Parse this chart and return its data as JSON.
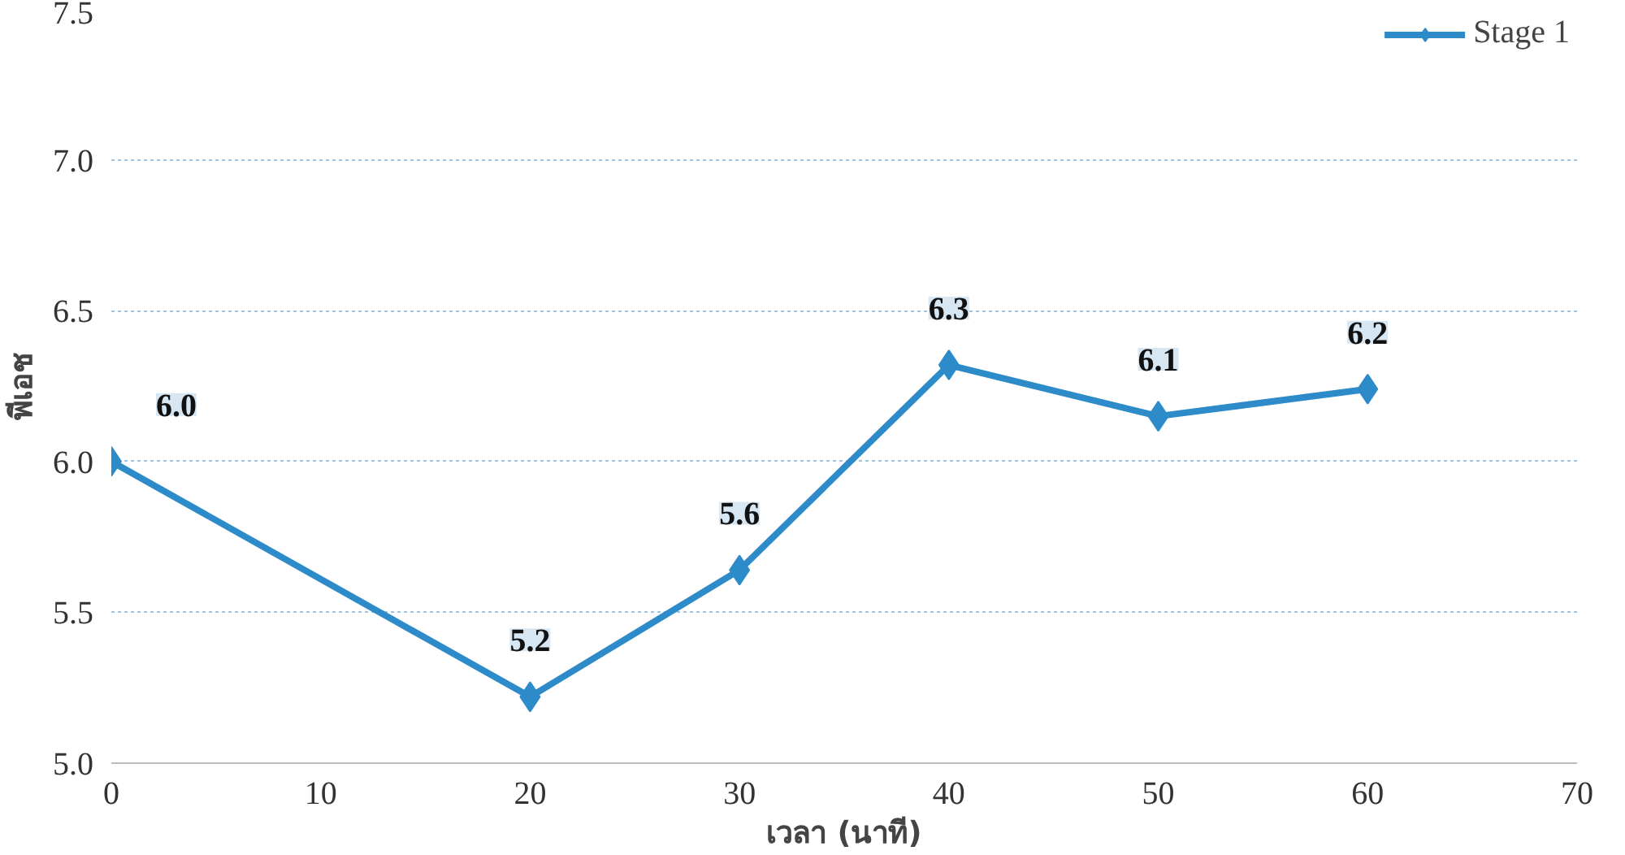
{
  "chart_data": {
    "type": "line",
    "xlabel": "เวลา (นาที)",
    "ylabel": "พีเอช",
    "x": [
      0,
      20,
      30,
      40,
      50,
      60
    ],
    "series": [
      {
        "name": "Stage 1",
        "color": "#2e8bc9",
        "values": [
          6.0,
          5.22,
          5.64,
          6.32,
          6.15,
          6.24
        ],
        "value_labels": [
          "6.0",
          "5.2",
          "5.6",
          "6.3",
          "6.1",
          "6.2"
        ]
      }
    ],
    "xlim": [
      0,
      70
    ],
    "xticks": [
      0,
      10,
      20,
      30,
      40,
      50,
      60,
      70
    ],
    "ylim": [
      5.0,
      7.5
    ],
    "yticks": [
      {
        "value": 5.0,
        "label": "5.0"
      },
      {
        "value": 5.5,
        "label": "5.5"
      },
      {
        "value": 6.0,
        "label": "6.0"
      },
      {
        "value": 6.5,
        "label": "6.5"
      },
      {
        "value": 7.0,
        "label": "7.0"
      },
      {
        "value": 7.5,
        "label": "7.5"
      }
    ],
    "grid": "y",
    "legend": "top right",
    "marker": "diamond",
    "line_style": "solid"
  }
}
